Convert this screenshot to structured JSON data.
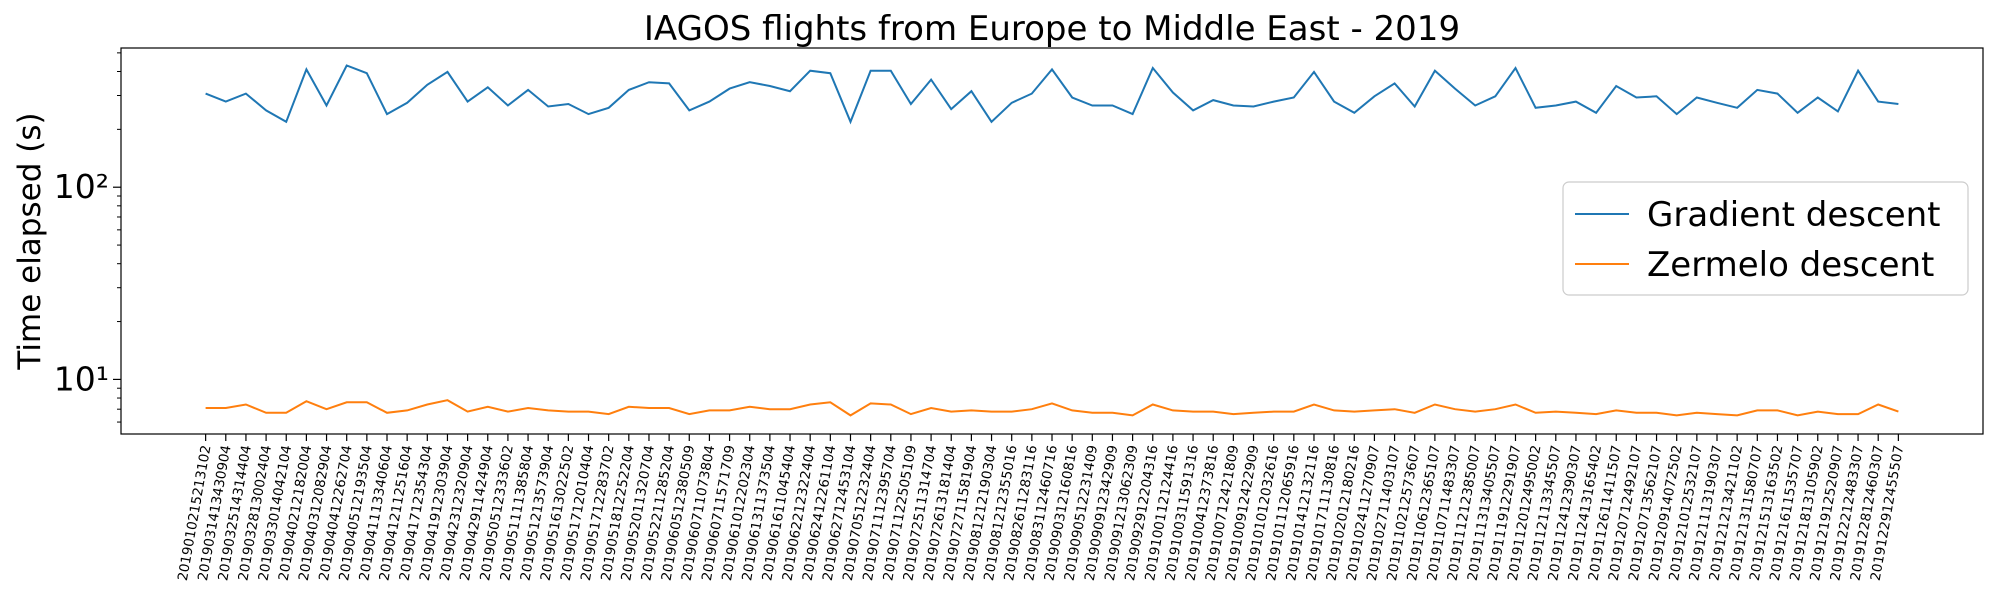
{
  "chart_data": {
    "type": "line",
    "title": "IAGOS flights from Europe to Middle East - 2019",
    "ylabel": "Time elapsed (s)",
    "log_y": true,
    "legend": "right",
    "categories": [
      "2019010215213102",
      "2019031413430904",
      "2019032514314404",
      "2019032813002404",
      "2019033014042104",
      "2019040212182004",
      "2019040312082904",
      "2019040412262704",
      "2019040512193504",
      "2019041113340604",
      "2019041211251604",
      "2019041712354304",
      "2019041912303904",
      "2019042312320904",
      "2019042911424904",
      "2019050512333602",
      "2019051111385804",
      "2019051213573904",
      "2019051613022502",
      "2019051712010404",
      "2019051712283702",
      "2019051812252204",
      "2019052011320704",
      "2019052211285204",
      "2019060512380509",
      "2019060711073804",
      "2019060711571709",
      "2019061012202304",
      "2019061311373504",
      "2019061611045404",
      "2019062212322404",
      "2019062412261104",
      "2019062712453104",
      "2019070512232404",
      "2019071112395704",
      "2019071122505109",
      "2019072511314704",
      "2019072613181404",
      "2019072711581904",
      "2019081212190304",
      "2019081212355016",
      "2019082611283116",
      "2019083112460716",
      "2019090312160816",
      "2019090512231409",
      "2019090912342909",
      "2019091213062309",
      "2019092912204316",
      "2019100112124416",
      "2019100311591316",
      "2019100412373816",
      "2019100712421809",
      "2019100912422909",
      "2019101012032616",
      "2019101112065916",
      "2019101412132116",
      "2019101711130816",
      "2019102012180216",
      "2019102411270907",
      "2019102711403107",
      "2019110212573607",
      "2019110612365107",
      "2019110711483307",
      "2019111212385007",
      "2019111313405507",
      "2019111912291907",
      "2019112012495002",
      "2019112113345507",
      "2019112412390307",
      "2019112413165402",
      "2019112611411507",
      "2019120712492107",
      "2019120713562107",
      "2019120914072502",
      "2019121012532107",
      "2019121113190307",
      "2019121213421102",
      "2019121311580707",
      "2019121513163502",
      "2019121611535707",
      "2019121813105902",
      "2019121912520907",
      "2019122212483307",
      "2019122812460307",
      "2019122912455507"
    ],
    "series": [
      {
        "name": "Gradient descent",
        "color": "#1f77b4",
        "values": [
          307,
          279,
          307,
          251,
          219,
          410,
          266,
          430,
          392,
          240,
          275,
          341,
          398,
          279,
          331,
          266,
          321,
          263,
          271,
          240,
          259,
          321,
          352,
          347,
          251,
          279,
          326,
          352,
          336,
          316,
          404,
          392,
          219,
          404,
          404,
          271,
          363,
          255,
          316,
          219,
          275,
          307,
          410,
          293,
          266,
          266,
          240,
          417,
          311,
          251,
          284,
          266,
          263,
          279,
          293,
          398,
          279,
          244,
          297,
          347,
          263,
          404,
          326,
          266,
          297,
          417,
          259,
          266,
          279,
          244,
          336,
          293,
          297,
          240,
          293,
          275,
          259,
          321,
          307,
          244,
          293,
          248,
          404,
          279,
          271
        ]
      },
      {
        "name": "Zermelo descent",
        "color": "#ff7f0e",
        "values": [
          7.1,
          7.1,
          7.4,
          6.7,
          6.7,
          7.7,
          7.0,
          7.6,
          7.6,
          6.7,
          6.9,
          7.4,
          7.8,
          6.8,
          7.2,
          6.8,
          7.1,
          6.9,
          6.8,
          6.8,
          6.6,
          7.2,
          7.1,
          7.1,
          6.6,
          6.9,
          6.9,
          7.2,
          7.0,
          7.0,
          7.4,
          7.6,
          6.5,
          7.5,
          7.4,
          6.6,
          7.1,
          6.8,
          6.9,
          6.8,
          6.8,
          7.0,
          7.5,
          6.9,
          6.7,
          6.7,
          6.5,
          7.4,
          6.9,
          6.8,
          6.8,
          6.6,
          6.7,
          6.8,
          6.8,
          7.4,
          6.9,
          6.8,
          6.9,
          7.0,
          6.7,
          7.4,
          7.0,
          6.8,
          7.0,
          7.4,
          6.7,
          6.8,
          6.7,
          6.6,
          6.9,
          6.7,
          6.7,
          6.5,
          6.7,
          6.6,
          6.5,
          6.9,
          6.9,
          6.5,
          6.8,
          6.6,
          6.6,
          7.4,
          6.8
        ]
      }
    ],
    "ylim": [
      5.2,
      530
    ],
    "yticks": [
      {
        "value": 10,
        "label": "10¹"
      },
      {
        "value": 100,
        "label": "10²"
      }
    ],
    "yminor": [
      6,
      7,
      8,
      9,
      20,
      30,
      40,
      50,
      60,
      70,
      80,
      90,
      200,
      300,
      400,
      500
    ]
  }
}
